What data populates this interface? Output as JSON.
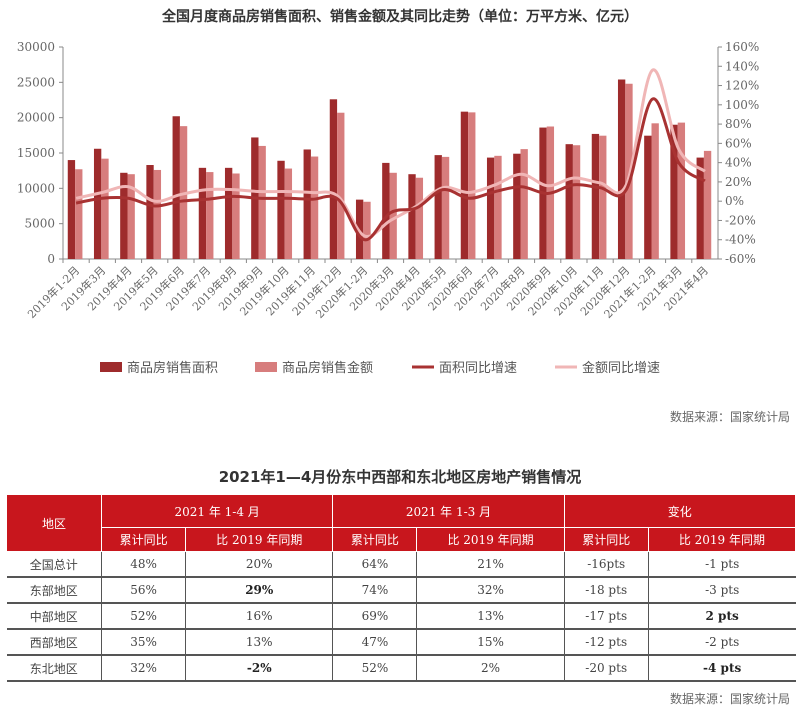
{
  "chart_data": {
    "type": "bar",
    "title": "全国月度商品房销售面积、销售金额及其同比走势（单位：万平方米、亿元）",
    "categories": [
      "2019年1-2月",
      "2019年3月",
      "2019年4月",
      "2019年5月",
      "2019年6月",
      "2019年7月",
      "2019年8月",
      "2019年9月",
      "2019年10月",
      "2019年11月",
      "2019年12月",
      "2020年1-2月",
      "2020年3月",
      "2020年4月",
      "2020年5月",
      "2020年6月",
      "2020年7月",
      "2020年8月",
      "2020年9月",
      "2020年10月",
      "2020年11月",
      "2020年12月",
      "2021年1-2月",
      "2021年3月",
      "2021年4月"
    ],
    "series": [
      {
        "name": "商品房销售面积",
        "kind": "bar",
        "axis": "left",
        "color": "#9e2b2c",
        "values": [
          14000,
          15600,
          12200,
          13300,
          20200,
          12900,
          12900,
          17200,
          13900,
          15500,
          22600,
          8400,
          13600,
          12000,
          14700,
          20850,
          14350,
          14900,
          18600,
          16250,
          17700,
          25400,
          17450,
          19000,
          14350
        ]
      },
      {
        "name": "商品房销售金额",
        "kind": "bar",
        "axis": "left",
        "color": "#d77d7d",
        "values": [
          12700,
          14200,
          12000,
          12600,
          18800,
          12300,
          12100,
          16000,
          12800,
          14500,
          20700,
          8100,
          12200,
          11500,
          14450,
          20750,
          14600,
          15550,
          18750,
          16100,
          17450,
          24800,
          19200,
          19300,
          15300
        ]
      },
      {
        "name": "面积同比增速",
        "kind": "line",
        "axis": "right",
        "color": "#a83232",
        "values": [
          -2,
          3,
          3,
          -5,
          0,
          2,
          5,
          3,
          3,
          2,
          2,
          -40,
          -12,
          -7,
          12,
          3,
          10,
          15,
          8,
          17,
          14,
          12,
          106,
          40,
          21
        ]
      },
      {
        "name": "金额同比增速",
        "kind": "line",
        "axis": "right",
        "color": "#f0b6b6",
        "values": [
          3,
          9,
          15,
          0,
          7,
          12,
          12,
          10,
          10,
          9,
          5,
          -36,
          -20,
          -5,
          14,
          9,
          17,
          28,
          16,
          24,
          19,
          17,
          136,
          54,
          31
        ]
      }
    ],
    "y_left": {
      "range": [
        0,
        30000
      ],
      "ticks": [
        "0",
        "5000",
        "10000",
        "15000",
        "20000",
        "25000",
        "30000"
      ]
    },
    "y_right": {
      "range": [
        -60,
        160
      ],
      "unit": "%",
      "ticks": [
        "-60%",
        "-40%",
        "-20%",
        "0%",
        "20%",
        "40%",
        "60%",
        "80%",
        "100%",
        "120%",
        "140%",
        "160%"
      ]
    },
    "grid": false,
    "legend_placement": "bottom"
  },
  "source1": "数据来源：国家统计局",
  "table": {
    "title": "2021年1—4月份东中西部和东北地区房地产销售情况",
    "header_color": "#c8161d",
    "region_header": "地区",
    "groups": [
      "2021 年 1-4 月",
      "2021 年 1-3 月",
      "变化"
    ],
    "subheaders": [
      "累计同比",
      "比 2019 年同期",
      "累计同比",
      "比 2019 年同期",
      "累计同比",
      "比 2019 年同期"
    ],
    "rows": [
      {
        "region": "全国总计",
        "cells": [
          "48%",
          "20%",
          "64%",
          "21%",
          "-16pts",
          "-1 pts"
        ]
      },
      {
        "region": "东部地区",
        "cells": [
          "56%",
          "29%",
          "74%",
          "32%",
          "-18 pts",
          "-3 pts"
        ]
      },
      {
        "region": "中部地区",
        "cells": [
          "52%",
          "16%",
          "69%",
          "13%",
          "-17 pts",
          "2 pts"
        ]
      },
      {
        "region": "西部地区",
        "cells": [
          "35%",
          "13%",
          "47%",
          "15%",
          "-12 pts",
          "-2 pts"
        ]
      },
      {
        "region": "东北地区",
        "cells": [
          "32%",
          "-2%",
          "52%",
          "2%",
          "-20 pts",
          "-4 pts"
        ]
      }
    ],
    "bold_cells": [
      "1-1",
      "4-1",
      "2-5",
      "4-5"
    ]
  },
  "source2": "数据来源：国家统计局"
}
